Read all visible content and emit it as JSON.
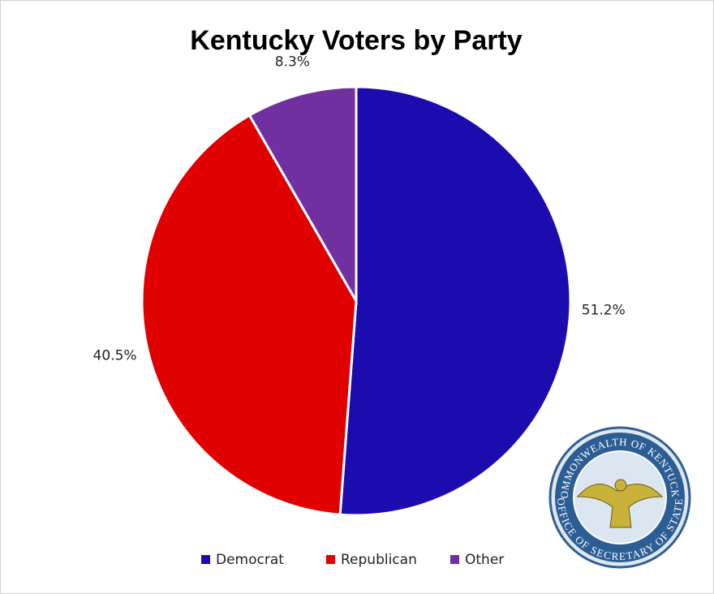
{
  "chart_data": {
    "type": "pie",
    "title": "Kentucky Voters by Party",
    "categories": [
      "Democrat",
      "Republican",
      "Other"
    ],
    "values": [
      51.2,
      40.5,
      8.3
    ],
    "value_labels": [
      "51.2%",
      "40.5%",
      "8.3%"
    ],
    "colors": [
      "#1c0cb0",
      "#e00000",
      "#7030a0"
    ],
    "legend": "bottom"
  },
  "seal": {
    "top": "COMMONWEALTH OF KENTUCKY",
    "bottom": "OFFICE OF SECRETARY OF STATE"
  }
}
